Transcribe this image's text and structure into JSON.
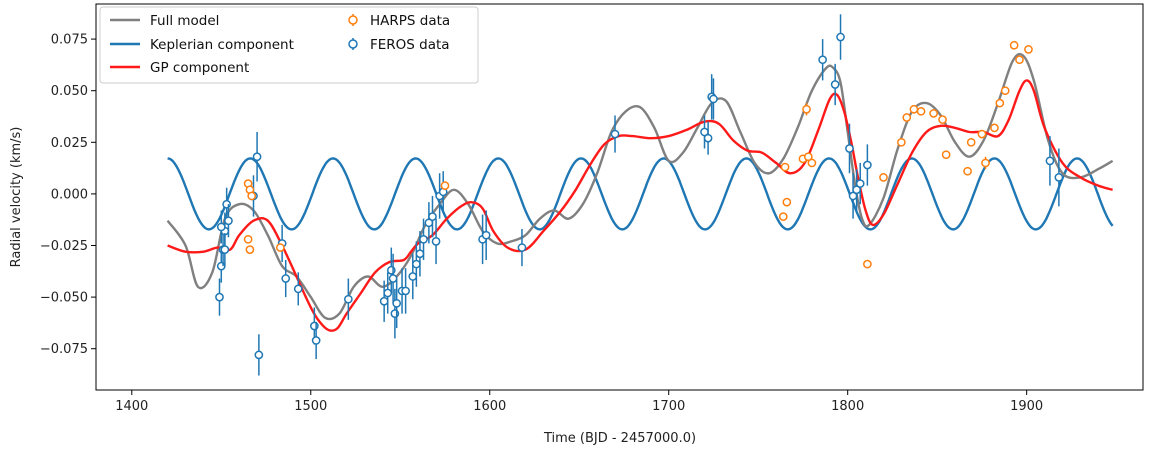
{
  "chart_data": {
    "type": "line",
    "title": "",
    "xlabel": "Time (BJD - 2457000.0)",
    "ylabel": "Radial velocity (km/s)",
    "xlim": [
      1380,
      1965
    ],
    "ylim": [
      -0.095,
      0.092
    ],
    "x_ticks": [
      1400,
      1500,
      1600,
      1700,
      1800,
      1900
    ],
    "x_tick_labels": [
      "1400",
      "1500",
      "1600",
      "1700",
      "1800",
      "1900"
    ],
    "y_ticks": [
      -0.075,
      -0.05,
      -0.025,
      0.0,
      0.025,
      0.05,
      0.075
    ],
    "y_tick_labels": [
      "−0.075",
      "−0.050",
      "−0.025",
      "0.000",
      "0.025",
      "0.050",
      "0.075"
    ],
    "grid": false,
    "legend": "top-left",
    "series": [
      {
        "name": "Full model",
        "kind": "line",
        "color": "#808080",
        "x": [
          1420,
          1430,
          1437,
          1445,
          1452,
          1460,
          1468,
          1476,
          1484,
          1492,
          1500,
          1508,
          1516,
          1524,
          1532,
          1540,
          1548,
          1556,
          1564,
          1572,
          1580,
          1588,
          1596,
          1604,
          1612,
          1620,
          1628,
          1636,
          1644,
          1652,
          1660,
          1668,
          1676,
          1684,
          1692,
          1700,
          1708,
          1716,
          1724,
          1732,
          1740,
          1748,
          1756,
          1764,
          1772,
          1780,
          1788,
          1792,
          1796,
          1800,
          1804,
          1808,
          1812,
          1820,
          1828,
          1836,
          1844,
          1852,
          1860,
          1868,
          1876,
          1884,
          1892,
          1898,
          1904,
          1912,
          1920,
          1930,
          1940,
          1948
        ],
        "y": [
          -0.013,
          -0.025,
          -0.045,
          -0.038,
          -0.012,
          -0.005,
          -0.008,
          -0.02,
          -0.035,
          -0.04,
          -0.05,
          -0.06,
          -0.058,
          -0.045,
          -0.04,
          -0.045,
          -0.04,
          -0.03,
          -0.015,
          -0.005,
          0.002,
          -0.005,
          -0.018,
          -0.024,
          -0.023,
          -0.02,
          -0.012,
          -0.008,
          -0.012,
          -0.005,
          0.01,
          0.03,
          0.04,
          0.042,
          0.032,
          0.016,
          0.02,
          0.032,
          0.044,
          0.045,
          0.03,
          0.015,
          0.01,
          0.017,
          0.032,
          0.05,
          0.061,
          0.061,
          0.054,
          0.03,
          0.005,
          -0.012,
          -0.015,
          -0.002,
          0.022,
          0.04,
          0.044,
          0.038,
          0.025,
          0.018,
          0.026,
          0.044,
          0.064,
          0.067,
          0.055,
          0.026,
          0.01,
          0.008,
          0.012,
          0.016
        ]
      },
      {
        "name": "Keplerian component",
        "kind": "line",
        "color": "#1f77b4",
        "amplitude": 0.0172,
        "period": 46.2,
        "peak_epoch": 1420,
        "x_range": [
          1420,
          1948
        ]
      },
      {
        "name": "GP component",
        "kind": "line",
        "color": "#ff1a1a",
        "x": [
          1420,
          1430,
          1440,
          1448,
          1455,
          1460,
          1468,
          1476,
          1484,
          1492,
          1500,
          1505,
          1510,
          1515,
          1520,
          1528,
          1536,
          1544,
          1552,
          1556,
          1560,
          1568,
          1576,
          1584,
          1590,
          1596,
          1602,
          1610,
          1620,
          1630,
          1640,
          1648,
          1656,
          1664,
          1672,
          1680,
          1690,
          1700,
          1710,
          1720,
          1728,
          1736,
          1744,
          1752,
          1760,
          1768,
          1776,
          1784,
          1790,
          1794,
          1798,
          1802,
          1806,
          1810,
          1814,
          1820,
          1828,
          1836,
          1844,
          1852,
          1860,
          1868,
          1876,
          1884,
          1890,
          1896,
          1900,
          1904,
          1910,
          1920,
          1930,
          1940,
          1948
        ],
        "y": [
          -0.025,
          -0.028,
          -0.028,
          -0.026,
          -0.027,
          -0.02,
          -0.013,
          -0.013,
          -0.025,
          -0.04,
          -0.055,
          -0.062,
          -0.066,
          -0.065,
          -0.058,
          -0.048,
          -0.038,
          -0.033,
          -0.032,
          -0.028,
          -0.024,
          -0.02,
          -0.012,
          -0.006,
          -0.004,
          -0.007,
          -0.018,
          -0.026,
          -0.027,
          -0.018,
          -0.008,
          0.002,
          0.014,
          0.024,
          0.028,
          0.028,
          0.027,
          0.028,
          0.031,
          0.035,
          0.034,
          0.026,
          0.021,
          0.02,
          0.015,
          0.01,
          0.015,
          0.032,
          0.046,
          0.048,
          0.04,
          0.025,
          0.007,
          -0.008,
          -0.015,
          -0.01,
          0.005,
          0.02,
          0.03,
          0.033,
          0.032,
          0.03,
          0.03,
          0.028,
          0.036,
          0.05,
          0.055,
          0.05,
          0.032,
          0.015,
          0.008,
          0.004,
          0.002
        ]
      },
      {
        "name": "HARPS data",
        "kind": "errorbar",
        "color": "#ff7f0e",
        "x": [
          1465,
          1466,
          1467,
          1465,
          1466,
          1483,
          1575,
          1765,
          1766,
          1764,
          1775,
          1777,
          1778,
          1780,
          1811,
          1820,
          1830,
          1833,
          1837,
          1841,
          1848,
          1853,
          1855,
          1867,
          1869,
          1875,
          1877,
          1882,
          1885,
          1888,
          1893,
          1896,
          1901
        ],
        "y": [
          0.005,
          0.002,
          -0.001,
          -0.022,
          -0.027,
          -0.026,
          0.004,
          0.013,
          -0.004,
          -0.011,
          0.017,
          0.041,
          0.018,
          0.015,
          -0.034,
          0.008,
          0.025,
          0.037,
          0.041,
          0.04,
          0.039,
          0.036,
          0.019,
          0.011,
          0.025,
          0.029,
          0.015,
          0.032,
          0.044,
          0.05,
          0.072,
          0.065,
          0.07
        ],
        "yerr": [
          0.002,
          0.002,
          0.002,
          0.002,
          0.002,
          0.002,
          0.002,
          0.002,
          0.002,
          0.002,
          0.002,
          0.003,
          0.002,
          0.002,
          0.002,
          0.002,
          0.002,
          0.002,
          0.002,
          0.002,
          0.002,
          0.002,
          0.002,
          0.002,
          0.002,
          0.002,
          0.003,
          0.002,
          0.002,
          0.002,
          0.002,
          0.002,
          0.002
        ]
      },
      {
        "name": "FEROS data",
        "kind": "errorbar",
        "color": "#1f77b4",
        "x": [
          1449,
          1450,
          1451,
          1452,
          1453,
          1454,
          1450,
          1452,
          1468,
          1470,
          1471,
          1484,
          1486,
          1493,
          1502,
          1503,
          1521,
          1541,
          1543,
          1545,
          1546,
          1547,
          1548,
          1551,
          1553,
          1557,
          1559,
          1561,
          1563,
          1566,
          1568,
          1570,
          1572,
          1574,
          1596,
          1598,
          1618,
          1670,
          1720,
          1722,
          1724,
          1725,
          1786,
          1793,
          1796,
          1801,
          1803,
          1805,
          1807,
          1811,
          1913,
          1918
        ],
        "y": [
          -0.05,
          -0.035,
          -0.027,
          -0.018,
          -0.005,
          -0.013,
          -0.016,
          -0.027,
          -0.001,
          0.018,
          -0.078,
          -0.024,
          -0.041,
          -0.046,
          -0.064,
          -0.071,
          -0.051,
          -0.052,
          -0.048,
          -0.037,
          -0.041,
          -0.058,
          -0.053,
          -0.047,
          -0.047,
          -0.04,
          -0.034,
          -0.029,
          -0.022,
          -0.014,
          -0.011,
          -0.023,
          -0.001,
          0.001,
          -0.022,
          -0.02,
          -0.026,
          0.029,
          0.03,
          0.027,
          0.047,
          0.046,
          0.065,
          0.053,
          0.076,
          0.022,
          -0.001,
          0.002,
          0.005,
          0.014,
          0.016,
          0.008
        ],
        "yerr": [
          0.009,
          0.008,
          0.008,
          0.009,
          0.008,
          0.008,
          0.008,
          0.008,
          0.01,
          0.012,
          0.01,
          0.009,
          0.009,
          0.008,
          0.009,
          0.009,
          0.01,
          0.01,
          0.01,
          0.011,
          0.012,
          0.012,
          0.012,
          0.011,
          0.011,
          0.011,
          0.011,
          0.011,
          0.01,
          0.01,
          0.01,
          0.011,
          0.011,
          0.01,
          0.012,
          0.012,
          0.009,
          0.009,
          0.008,
          0.008,
          0.011,
          0.01,
          0.01,
          0.01,
          0.011,
          0.012,
          0.011,
          0.01,
          0.01,
          0.01,
          0.012,
          0.014
        ]
      }
    ]
  }
}
